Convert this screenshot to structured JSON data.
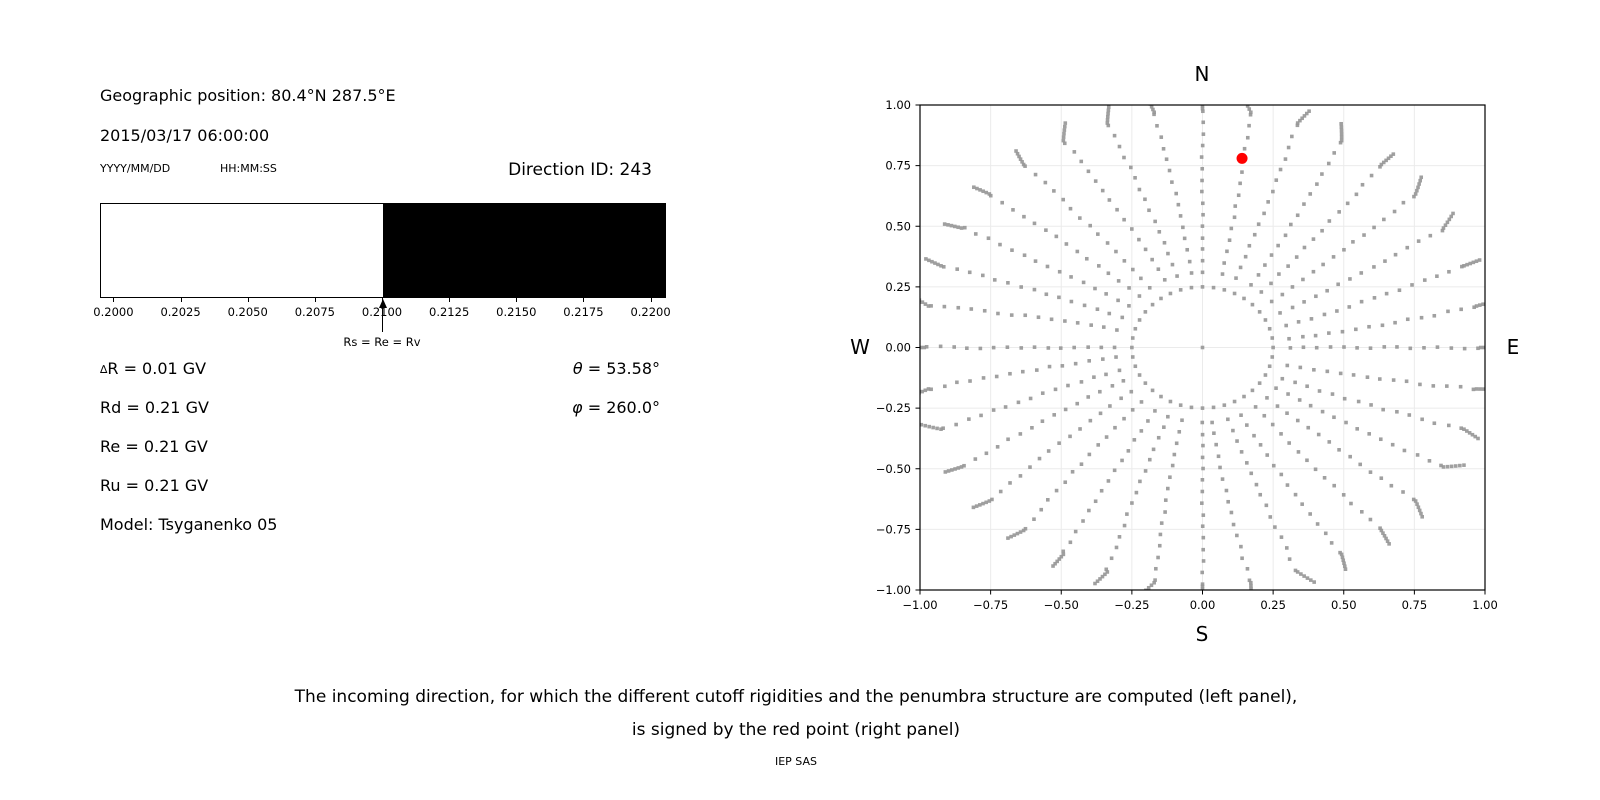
{
  "figure": {
    "background": "#ffffff",
    "header": {
      "geographic_position": "Geographic position: 80.4°N 287.5°E",
      "datetime": "2015/03/17 06:00:00",
      "date_format_label": "YYYY/MM/DD",
      "time_format_label": "HH:MM:SS",
      "direction_id": "Direction ID: 243"
    },
    "parameters": {
      "delta_symbol": "∆",
      "delta_r_text": "R = 0.01 GV",
      "rd": "Rd = 0.21 GV",
      "re": "Re = 0.21 GV",
      "ru": "Ru = 0.21 GV",
      "model": "Model: Tsyganenko 05",
      "theta_symbol": "θ",
      "theta_text": " = 53.58°",
      "phi_symbol": "φ",
      "phi_text": " = 260.0°"
    },
    "caption": {
      "line1": "The incoming direction, for which the different cutoff rigidities and the penumbra structure are computed (left panel),",
      "line2": "is signed by the red point (right panel)",
      "credit": "IEP SAS"
    }
  },
  "chart_data": [
    {
      "type": "bar",
      "name": "penumbra-structure",
      "title": "",
      "units": "GV",
      "xlim": [
        0.1995,
        0.2205
      ],
      "x_tick_values": [
        0.2,
        0.2025,
        0.205,
        0.2075,
        0.21,
        0.2125,
        0.215,
        0.2175,
        0.22
      ],
      "x_tick_labels": [
        "0.2000",
        "0.2025",
        "0.2050",
        "0.2075",
        "0.2100",
        "0.2125",
        "0.2150",
        "0.2175",
        "0.2200"
      ],
      "bands": [
        {
          "from": 0.1995,
          "to": 0.21,
          "color": "#ffffff",
          "meaning": "allowed rigidities"
        },
        {
          "from": 0.21,
          "to": 0.2205,
          "color": "#000000",
          "meaning": "forbidden rigidities"
        }
      ],
      "annotation": {
        "x": 0.21,
        "label": "Rs = Re = Rv"
      }
    },
    {
      "type": "scatter",
      "name": "arrival-directions-sky-map",
      "xlim": [
        -1,
        1
      ],
      "ylim": [
        -1,
        1
      ],
      "grid": true,
      "grid_color": "#ebebeb",
      "tick_values": [
        -1,
        -0.75,
        -0.5,
        -0.25,
        0,
        0.25,
        0.5,
        0.75,
        1
      ],
      "x_tick_labels": [
        "−1.00",
        "−0.75",
        "−0.50",
        "−0.25",
        "0.00",
        "0.25",
        "0.50",
        "0.75",
        "1.00"
      ],
      "y_tick_labels": [
        "1.00",
        "0.75",
        "0.50",
        "0.25",
        "0.00",
        "−0.25",
        "−0.50",
        "−0.75",
        "−1.00"
      ],
      "compass": {
        "n": "N",
        "e": "E",
        "s": "S",
        "w": "W"
      },
      "dot_color": "#969696",
      "center_dot": {
        "x": 0,
        "y": 0
      },
      "ring": {
        "radius": 0.25,
        "dot_count": 40
      },
      "spokes": {
        "count": 36,
        "azimuth_start_deg": 0,
        "azimuth_step_deg": 10,
        "r_start": 0.31,
        "r_main_end": 0.975,
        "main_dot_count": 15,
        "tip": {
          "r_from": 0.985,
          "r_to": 1.045,
          "dot_count": 6
        },
        "swirl_deg": 3.5,
        "jitter": 0.004,
        "seed": 11
      },
      "red_point": {
        "x": 0.14,
        "y": 0.78,
        "color": "#ff0000",
        "meaning": "incoming direction θ = 53.58°, φ = 260.0°"
      }
    }
  ]
}
